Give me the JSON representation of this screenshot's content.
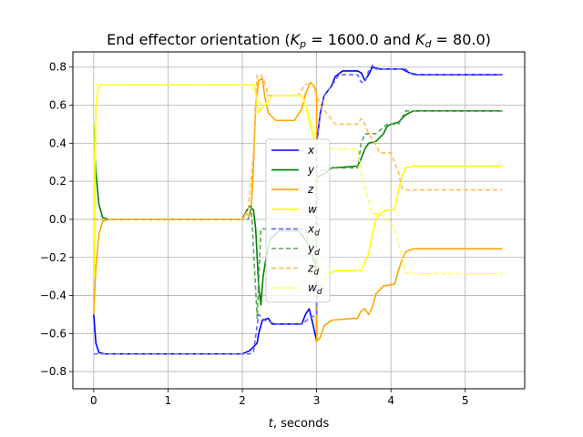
{
  "chart_data": {
    "type": "line",
    "title": "End effector orientation (",
    "title_kp_sym": "K",
    "title_kp_sub": "p",
    "title_kp_val": " = 1600.0 and ",
    "title_kd_sym": "K",
    "title_kd_sub": "d",
    "title_kd_val": " = 80.0)",
    "xlabel_sym": "t",
    "xlabel_rest": ", seconds",
    "xlim": [
      -0.28,
      5.8
    ],
    "ylim": [
      -0.89,
      0.88
    ],
    "xticks": [
      0,
      1,
      2,
      3,
      4,
      5
    ],
    "yticks": [
      -0.8,
      -0.6,
      -0.4,
      -0.2,
      0.0,
      0.2,
      0.4,
      0.6,
      0.8
    ],
    "xtick_labels": [
      "0",
      "1",
      "2",
      "3",
      "4",
      "5"
    ],
    "ytick_labels": [
      "−0.8",
      "−0.6",
      "−0.4",
      "−0.2",
      "0.0",
      "0.2",
      "0.4",
      "0.6",
      "0.8"
    ],
    "grid": true,
    "legend_position": "center",
    "series": [
      {
        "name": "x",
        "sub": "",
        "color": "#0000ff",
        "dash": "solid",
        "points": [
          [
            0,
            -0.5
          ],
          [
            0.03,
            -0.65
          ],
          [
            0.07,
            -0.7
          ],
          [
            0.15,
            -0.707
          ],
          [
            2.0,
            -0.707
          ],
          [
            2.1,
            -0.69
          ],
          [
            2.2,
            -0.65
          ],
          [
            2.22,
            -0.6
          ],
          [
            2.27,
            -0.53
          ],
          [
            2.35,
            -0.52
          ],
          [
            2.4,
            -0.55
          ],
          [
            2.8,
            -0.55
          ],
          [
            2.85,
            -0.5
          ],
          [
            2.9,
            -0.47
          ],
          [
            2.95,
            -0.55
          ],
          [
            3.0,
            -0.64
          ],
          [
            3.0,
            0.4
          ],
          [
            3.05,
            0.56
          ],
          [
            3.1,
            0.65
          ],
          [
            3.2,
            0.7
          ],
          [
            3.25,
            0.75
          ],
          [
            3.35,
            0.78
          ],
          [
            3.55,
            0.78
          ],
          [
            3.6,
            0.77
          ],
          [
            3.65,
            0.73
          ],
          [
            3.7,
            0.76
          ],
          [
            3.75,
            0.8
          ],
          [
            3.85,
            0.79
          ],
          [
            4.15,
            0.79
          ],
          [
            4.25,
            0.77
          ],
          [
            4.35,
            0.76
          ],
          [
            5.5,
            0.76
          ]
        ]
      },
      {
        "name": "y",
        "sub": "",
        "color": "#008000",
        "dash": "solid",
        "points": [
          [
            0,
            0.5
          ],
          [
            0.03,
            0.25
          ],
          [
            0.07,
            0.08
          ],
          [
            0.12,
            0.01
          ],
          [
            0.2,
            0.0
          ],
          [
            2.0,
            0.0
          ],
          [
            2.05,
            0.04
          ],
          [
            2.1,
            0.07
          ],
          [
            2.15,
            0.05
          ],
          [
            2.18,
            -0.05
          ],
          [
            2.22,
            -0.35
          ],
          [
            2.25,
            -0.45
          ],
          [
            2.28,
            -0.3
          ],
          [
            2.32,
            -0.2
          ],
          [
            2.38,
            -0.1
          ],
          [
            2.5,
            -0.06
          ],
          [
            2.75,
            -0.06
          ],
          [
            2.8,
            -0.08
          ],
          [
            2.9,
            -0.14
          ],
          [
            2.95,
            -0.2
          ],
          [
            3.0,
            -0.25
          ],
          [
            3.0,
            0.22
          ],
          [
            3.05,
            0.23
          ],
          [
            3.1,
            0.24
          ],
          [
            3.2,
            0.27
          ],
          [
            3.55,
            0.28
          ],
          [
            3.6,
            0.32
          ],
          [
            3.65,
            0.37
          ],
          [
            3.7,
            0.4
          ],
          [
            3.8,
            0.41
          ],
          [
            3.9,
            0.45
          ],
          [
            3.95,
            0.49
          ],
          [
            4.0,
            0.5
          ],
          [
            4.1,
            0.51
          ],
          [
            4.15,
            0.53
          ],
          [
            4.2,
            0.55
          ],
          [
            4.3,
            0.57
          ],
          [
            5.5,
            0.57
          ]
        ]
      },
      {
        "name": "z",
        "sub": "",
        "color": "#ffa500",
        "dash": "solid",
        "points": [
          [
            0,
            -0.5
          ],
          [
            0.03,
            -0.25
          ],
          [
            0.07,
            -0.08
          ],
          [
            0.12,
            -0.01
          ],
          [
            0.2,
            0.0
          ],
          [
            2.0,
            0.0
          ],
          [
            2.05,
            0.03
          ],
          [
            2.1,
            0.02
          ],
          [
            2.12,
            0.05
          ],
          [
            2.15,
            0.28
          ],
          [
            2.18,
            0.6
          ],
          [
            2.22,
            0.73
          ],
          [
            2.27,
            0.74
          ],
          [
            2.3,
            0.65
          ],
          [
            2.35,
            0.56
          ],
          [
            2.45,
            0.52
          ],
          [
            2.7,
            0.52
          ],
          [
            2.8,
            0.58
          ],
          [
            2.85,
            0.66
          ],
          [
            2.92,
            0.72
          ],
          [
            2.97,
            0.7
          ],
          [
            3.0,
            0.66
          ],
          [
            3.0,
            -0.64
          ],
          [
            3.05,
            -0.62
          ],
          [
            3.1,
            -0.56
          ],
          [
            3.2,
            -0.53
          ],
          [
            3.5,
            -0.52
          ],
          [
            3.55,
            -0.52
          ],
          [
            3.6,
            -0.48
          ],
          [
            3.65,
            -0.47
          ],
          [
            3.7,
            -0.5
          ],
          [
            3.75,
            -0.46
          ],
          [
            3.8,
            -0.39
          ],
          [
            3.85,
            -0.37
          ],
          [
            3.9,
            -0.35
          ],
          [
            4.05,
            -0.34
          ],
          [
            4.1,
            -0.27
          ],
          [
            4.15,
            -0.21
          ],
          [
            4.2,
            -0.17
          ],
          [
            4.3,
            -0.155
          ],
          [
            5.5,
            -0.155
          ]
        ]
      },
      {
        "name": "w",
        "sub": "",
        "color": "#ffff00",
        "dash": "solid",
        "points": [
          [
            0,
            0.5
          ],
          [
            0.01,
            -0.3
          ],
          [
            0.02,
            0.3
          ],
          [
            0.03,
            0.6
          ],
          [
            0.06,
            0.69
          ],
          [
            0.1,
            0.707
          ],
          [
            2.1,
            0.707
          ],
          [
            2.15,
            0.71
          ],
          [
            2.18,
            0.68
          ],
          [
            2.2,
            0.6
          ],
          [
            2.22,
            0.56
          ],
          [
            2.25,
            0.58
          ],
          [
            2.3,
            0.6
          ],
          [
            2.35,
            0.62
          ],
          [
            2.4,
            0.65
          ],
          [
            2.8,
            0.65
          ],
          [
            2.85,
            0.6
          ],
          [
            2.9,
            0.52
          ],
          [
            2.95,
            0.45
          ],
          [
            3.0,
            0.38
          ],
          [
            3.0,
            -0.4
          ],
          [
            3.05,
            -0.38
          ],
          [
            3.1,
            -0.32
          ],
          [
            3.15,
            -0.29
          ],
          [
            3.25,
            -0.27
          ],
          [
            3.6,
            -0.27
          ],
          [
            3.7,
            -0.18
          ],
          [
            3.75,
            -0.08
          ],
          [
            3.8,
            0.0
          ],
          [
            3.85,
            0.03
          ],
          [
            3.95,
            0.05
          ],
          [
            4.05,
            0.05
          ],
          [
            4.1,
            0.15
          ],
          [
            4.15,
            0.23
          ],
          [
            4.2,
            0.27
          ],
          [
            4.3,
            0.28
          ],
          [
            5.5,
            0.28
          ]
        ]
      },
      {
        "name": "x",
        "sub": "d",
        "color": "#6a6af0",
        "dash": "dashed",
        "points": [
          [
            0,
            -0.707
          ],
          [
            2.1,
            -0.707
          ],
          [
            2.15,
            -0.7
          ],
          [
            2.22,
            -0.5
          ],
          [
            2.3,
            -0.53
          ],
          [
            2.45,
            -0.55
          ],
          [
            2.8,
            -0.55
          ],
          [
            2.9,
            -0.52
          ],
          [
            3.0,
            -0.5
          ],
          [
            3.0,
            0.4
          ],
          [
            3.05,
            0.55
          ],
          [
            3.1,
            0.65
          ],
          [
            3.2,
            0.7
          ],
          [
            3.3,
            0.76
          ],
          [
            3.55,
            0.76
          ],
          [
            3.6,
            0.72
          ],
          [
            3.65,
            0.72
          ],
          [
            3.7,
            0.78
          ],
          [
            3.75,
            0.81
          ],
          [
            3.8,
            0.79
          ],
          [
            4.2,
            0.79
          ],
          [
            4.25,
            0.77
          ],
          [
            4.3,
            0.76
          ],
          [
            5.5,
            0.76
          ]
        ]
      },
      {
        "name": "y",
        "sub": "d",
        "color": "#5aa85a",
        "dash": "dashed",
        "points": [
          [
            0,
            0.0
          ],
          [
            2.08,
            0.0
          ],
          [
            2.12,
            0.07
          ],
          [
            2.2,
            -0.52
          ],
          [
            2.25,
            -0.05
          ],
          [
            2.35,
            -0.05
          ],
          [
            2.85,
            -0.05
          ],
          [
            2.9,
            -0.15
          ],
          [
            3.0,
            -0.27
          ],
          [
            3.0,
            0.25
          ],
          [
            3.1,
            0.26
          ],
          [
            3.2,
            0.27
          ],
          [
            3.55,
            0.27
          ],
          [
            3.6,
            0.4
          ],
          [
            3.65,
            0.45
          ],
          [
            3.8,
            0.45
          ],
          [
            3.95,
            0.5
          ],
          [
            4.1,
            0.5
          ],
          [
            4.2,
            0.57
          ],
          [
            5.5,
            0.57
          ]
        ]
      },
      {
        "name": "z",
        "sub": "d",
        "color": "#ffbe50",
        "dash": "dashed",
        "points": [
          [
            0,
            0.0
          ],
          [
            2.0,
            0.0
          ],
          [
            2.08,
            0.05
          ],
          [
            2.15,
            0.35
          ],
          [
            2.2,
            0.76
          ],
          [
            2.25,
            0.76
          ],
          [
            2.3,
            0.72
          ],
          [
            2.35,
            0.65
          ],
          [
            2.45,
            0.65
          ],
          [
            2.75,
            0.65
          ],
          [
            2.85,
            0.71
          ],
          [
            2.95,
            0.71
          ],
          [
            3.0,
            0.65
          ],
          [
            3.05,
            0.6
          ],
          [
            3.15,
            0.55
          ],
          [
            3.25,
            0.5
          ],
          [
            3.55,
            0.5
          ],
          [
            3.6,
            0.53
          ],
          [
            3.65,
            0.5
          ],
          [
            3.7,
            0.45
          ],
          [
            3.8,
            0.39
          ],
          [
            3.85,
            0.35
          ],
          [
            4.0,
            0.35
          ],
          [
            4.1,
            0.25
          ],
          [
            4.15,
            0.16
          ],
          [
            4.2,
            0.155
          ],
          [
            5.5,
            0.155
          ]
        ]
      },
      {
        "name": "w",
        "sub": "d",
        "color": "#ffff55",
        "dash": "dashed",
        "points": [
          [
            0,
            0.707
          ],
          [
            2.1,
            0.707
          ],
          [
            2.15,
            0.68
          ],
          [
            2.2,
            0.62
          ],
          [
            2.3,
            0.6
          ],
          [
            2.4,
            0.65
          ],
          [
            2.8,
            0.65
          ],
          [
            2.9,
            0.55
          ],
          [
            3.0,
            0.4
          ],
          [
            3.0,
            0.38
          ],
          [
            3.2,
            0.37
          ],
          [
            3.55,
            0.37
          ],
          [
            3.6,
            0.24
          ],
          [
            3.7,
            0.1
          ],
          [
            3.75,
            0.03
          ],
          [
            3.85,
            0.03
          ],
          [
            3.95,
            0.0
          ],
          [
            4.05,
            -0.05
          ],
          [
            4.1,
            -0.12
          ],
          [
            4.15,
            -0.2
          ],
          [
            4.2,
            -0.28
          ],
          [
            4.3,
            -0.285
          ],
          [
            5.5,
            -0.285
          ]
        ]
      }
    ]
  }
}
